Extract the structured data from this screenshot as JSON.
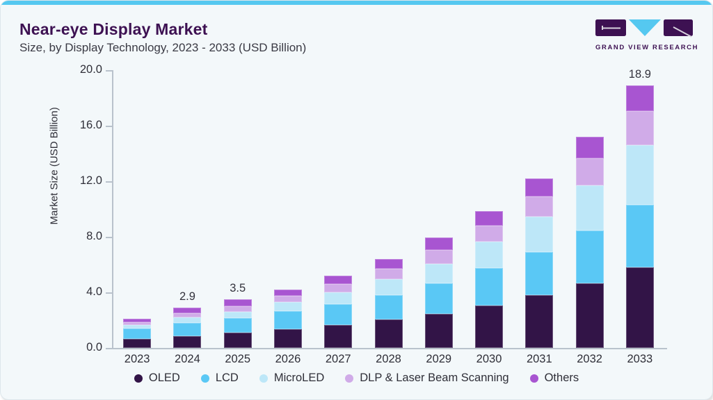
{
  "header": {
    "title": "Near-eye Display Market",
    "subtitle": "Size, by Display Technology, 2023 - 2033 (USD Billion)",
    "logo_text": "GRAND VIEW RESEARCH"
  },
  "colors": {
    "accent_blue": "#55c8f0",
    "brand_purple": "#3d1152",
    "card_background": "#f3f8fa",
    "axis_line": "#b9c2cc",
    "oled": "#321447",
    "lcd": "#5ac8f5",
    "microled": "#bde7f8",
    "dlp": "#d0abe8",
    "others": "#a855d1"
  },
  "chart_data": {
    "type": "bar",
    "stacked": true,
    "title": "Near-eye Display Market Size, by Display Technology, 2023 - 2033 (USD Billion)",
    "xlabel": "",
    "ylabel": "Market Size (USD Billion)",
    "ylim": [
      0,
      20
    ],
    "grid": false,
    "legend_position": "bottom",
    "yticks": [
      {
        "value": 0,
        "label": "0.0"
      },
      {
        "value": 4,
        "label": "4.0"
      },
      {
        "value": 8,
        "label": "8.0"
      },
      {
        "value": 12,
        "label": "12.0"
      },
      {
        "value": 16,
        "label": "16.0"
      },
      {
        "value": 20,
        "label": "20.0"
      }
    ],
    "categories": [
      "2023",
      "2024",
      "2025",
      "2026",
      "2027",
      "2028",
      "2029",
      "2030",
      "2031",
      "2032",
      "2033"
    ],
    "series": [
      {
        "name": "OLED",
        "color": "#321447",
        "values": [
          0.65,
          0.85,
          1.1,
          1.35,
          1.65,
          2.05,
          2.45,
          3.05,
          3.8,
          4.65,
          5.8
        ]
      },
      {
        "name": "LCD",
        "color": "#5ac8f5",
        "values": [
          0.75,
          0.95,
          1.05,
          1.3,
          1.5,
          1.75,
          2.2,
          2.7,
          3.1,
          3.8,
          4.5
        ]
      },
      {
        "name": "MicroLED",
        "color": "#bde7f8",
        "values": [
          0.25,
          0.4,
          0.45,
          0.65,
          0.85,
          1.15,
          1.4,
          1.9,
          2.55,
          3.25,
          4.3
        ]
      },
      {
        "name": "DLP & Laser Beam Scanning",
        "color": "#d0abe8",
        "values": [
          0.2,
          0.3,
          0.4,
          0.45,
          0.6,
          0.75,
          1.0,
          1.15,
          1.45,
          1.95,
          2.45
        ]
      },
      {
        "name": "Others",
        "color": "#a855d1",
        "values": [
          0.25,
          0.4,
          0.5,
          0.45,
          0.6,
          0.7,
          0.9,
          1.05,
          1.3,
          1.55,
          1.85
        ]
      }
    ],
    "totals": [
      2.1,
      2.9,
      3.5,
      4.2,
      5.2,
      6.4,
      7.95,
      9.85,
      12.2,
      15.2,
      18.9
    ],
    "annotations": [
      {
        "category": "2024",
        "label": "2.9"
      },
      {
        "category": "2025",
        "label": "3.5"
      },
      {
        "category": "2033",
        "label": "18.9"
      }
    ]
  }
}
